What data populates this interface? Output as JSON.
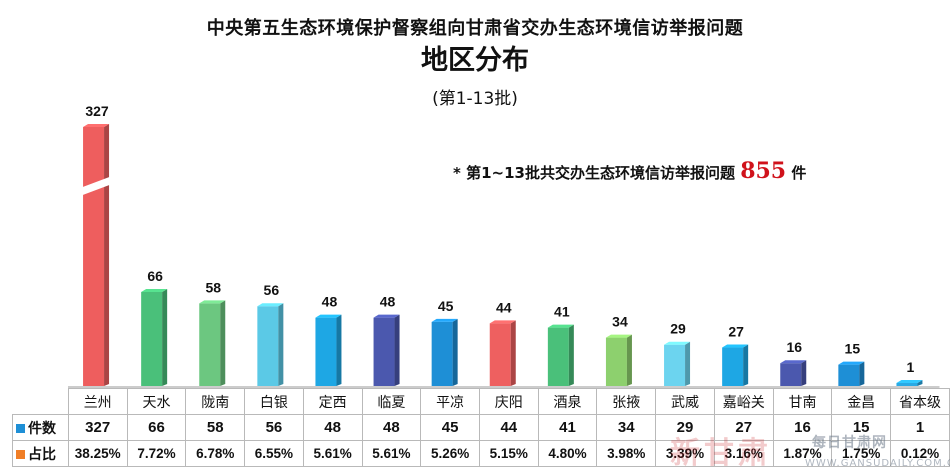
{
  "header": {
    "title_line1": "中央第五生态环境保护督察组向甘肃省交办生态环境信访举报问题",
    "title_line2": "地区分布",
    "title_line3": "(第1-13批)"
  },
  "note": {
    "prefix": "* 第1~13批共交办生态环境信访举报问题",
    "total": "855",
    "suffix": "件"
  },
  "table": {
    "count_row_label": "件数",
    "share_row_label": "占比"
  },
  "watermark": {
    "brand": "新甘肃",
    "site": "每日甘肃网",
    "url": "WWW.GANSUDAILY.COM.CN"
  },
  "colors": {
    "count_marker": "#1e8fd6",
    "share_marker": "#f07e26",
    "total_highlight": "#d0121b"
  },
  "chart_data": {
    "type": "bar",
    "categories": [
      "兰州",
      "天水",
      "陇南",
      "白银",
      "定西",
      "临夏",
      "平凉",
      "庆阳",
      "酒泉",
      "张掖",
      "武威",
      "嘉峪关",
      "甘南",
      "金昌",
      "省本级"
    ],
    "series": [
      {
        "name": "件数",
        "values": [
          327,
          66,
          58,
          56,
          48,
          48,
          45,
          44,
          41,
          34,
          29,
          27,
          16,
          15,
          1
        ],
        "colors": [
          "#ee5e5e",
          "#4ac07a",
          "#6cc780",
          "#5bc9e6",
          "#1ea7e4",
          "#4b58ae",
          "#1e8fd6",
          "#ee6060",
          "#4ac07a",
          "#8dd06e",
          "#6cd4ef",
          "#1ea7e4",
          "#4b58ae",
          "#1e8fd6",
          "#2aaae5"
        ]
      },
      {
        "name": "占比",
        "values": [
          "38.25%",
          "7.72%",
          "6.78%",
          "6.55%",
          "5.61%",
          "5.61%",
          "5.26%",
          "5.15%",
          "4.80%",
          "3.98%",
          "3.39%",
          "3.16%",
          "1.87%",
          "1.75%",
          "0.12%"
        ]
      }
    ],
    "axis_break": true,
    "grid": false,
    "legend": "bottom-left"
  }
}
